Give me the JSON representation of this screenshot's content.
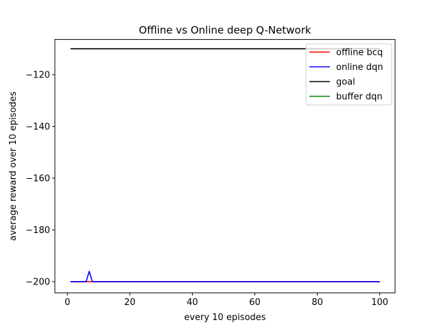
{
  "chart_data": {
    "type": "line",
    "title": "Offline vs Online deep Q-Network",
    "xlabel": "every 10 episodes",
    "ylabel": "average reward over 10 episodes",
    "xlim": [
      -4.0,
      104.9
    ],
    "ylim": [
      -204.3,
      -106.4
    ],
    "xticks": [
      0,
      20,
      40,
      60,
      80,
      100
    ],
    "yticks": [
      -200,
      -180,
      -160,
      -140,
      -120
    ],
    "xtick_labels": [
      "0",
      "20",
      "40",
      "60",
      "80",
      "100"
    ],
    "ytick_labels": [
      "−200",
      "−180",
      "−160",
      "−140",
      "−120"
    ],
    "grid": false,
    "legend_position": "top-right",
    "series": [
      {
        "name": "offline bcq",
        "color": "#ff0000",
        "points": [
          [
            1,
            -200
          ],
          [
            7,
            -200
          ],
          [
            8,
            -200
          ],
          [
            100,
            -200
          ]
        ]
      },
      {
        "name": "online dqn",
        "color": "#0000ff",
        "points": [
          [
            1,
            -200
          ],
          [
            6,
            -200
          ],
          [
            7,
            -196
          ],
          [
            8,
            -200
          ],
          [
            100,
            -200
          ]
        ]
      },
      {
        "name": "goal",
        "color": "#000000",
        "points": [
          [
            1,
            -110
          ],
          [
            100,
            -110
          ]
        ]
      },
      {
        "name": "buffer dqn",
        "color": "#008000",
        "points": []
      }
    ]
  }
}
